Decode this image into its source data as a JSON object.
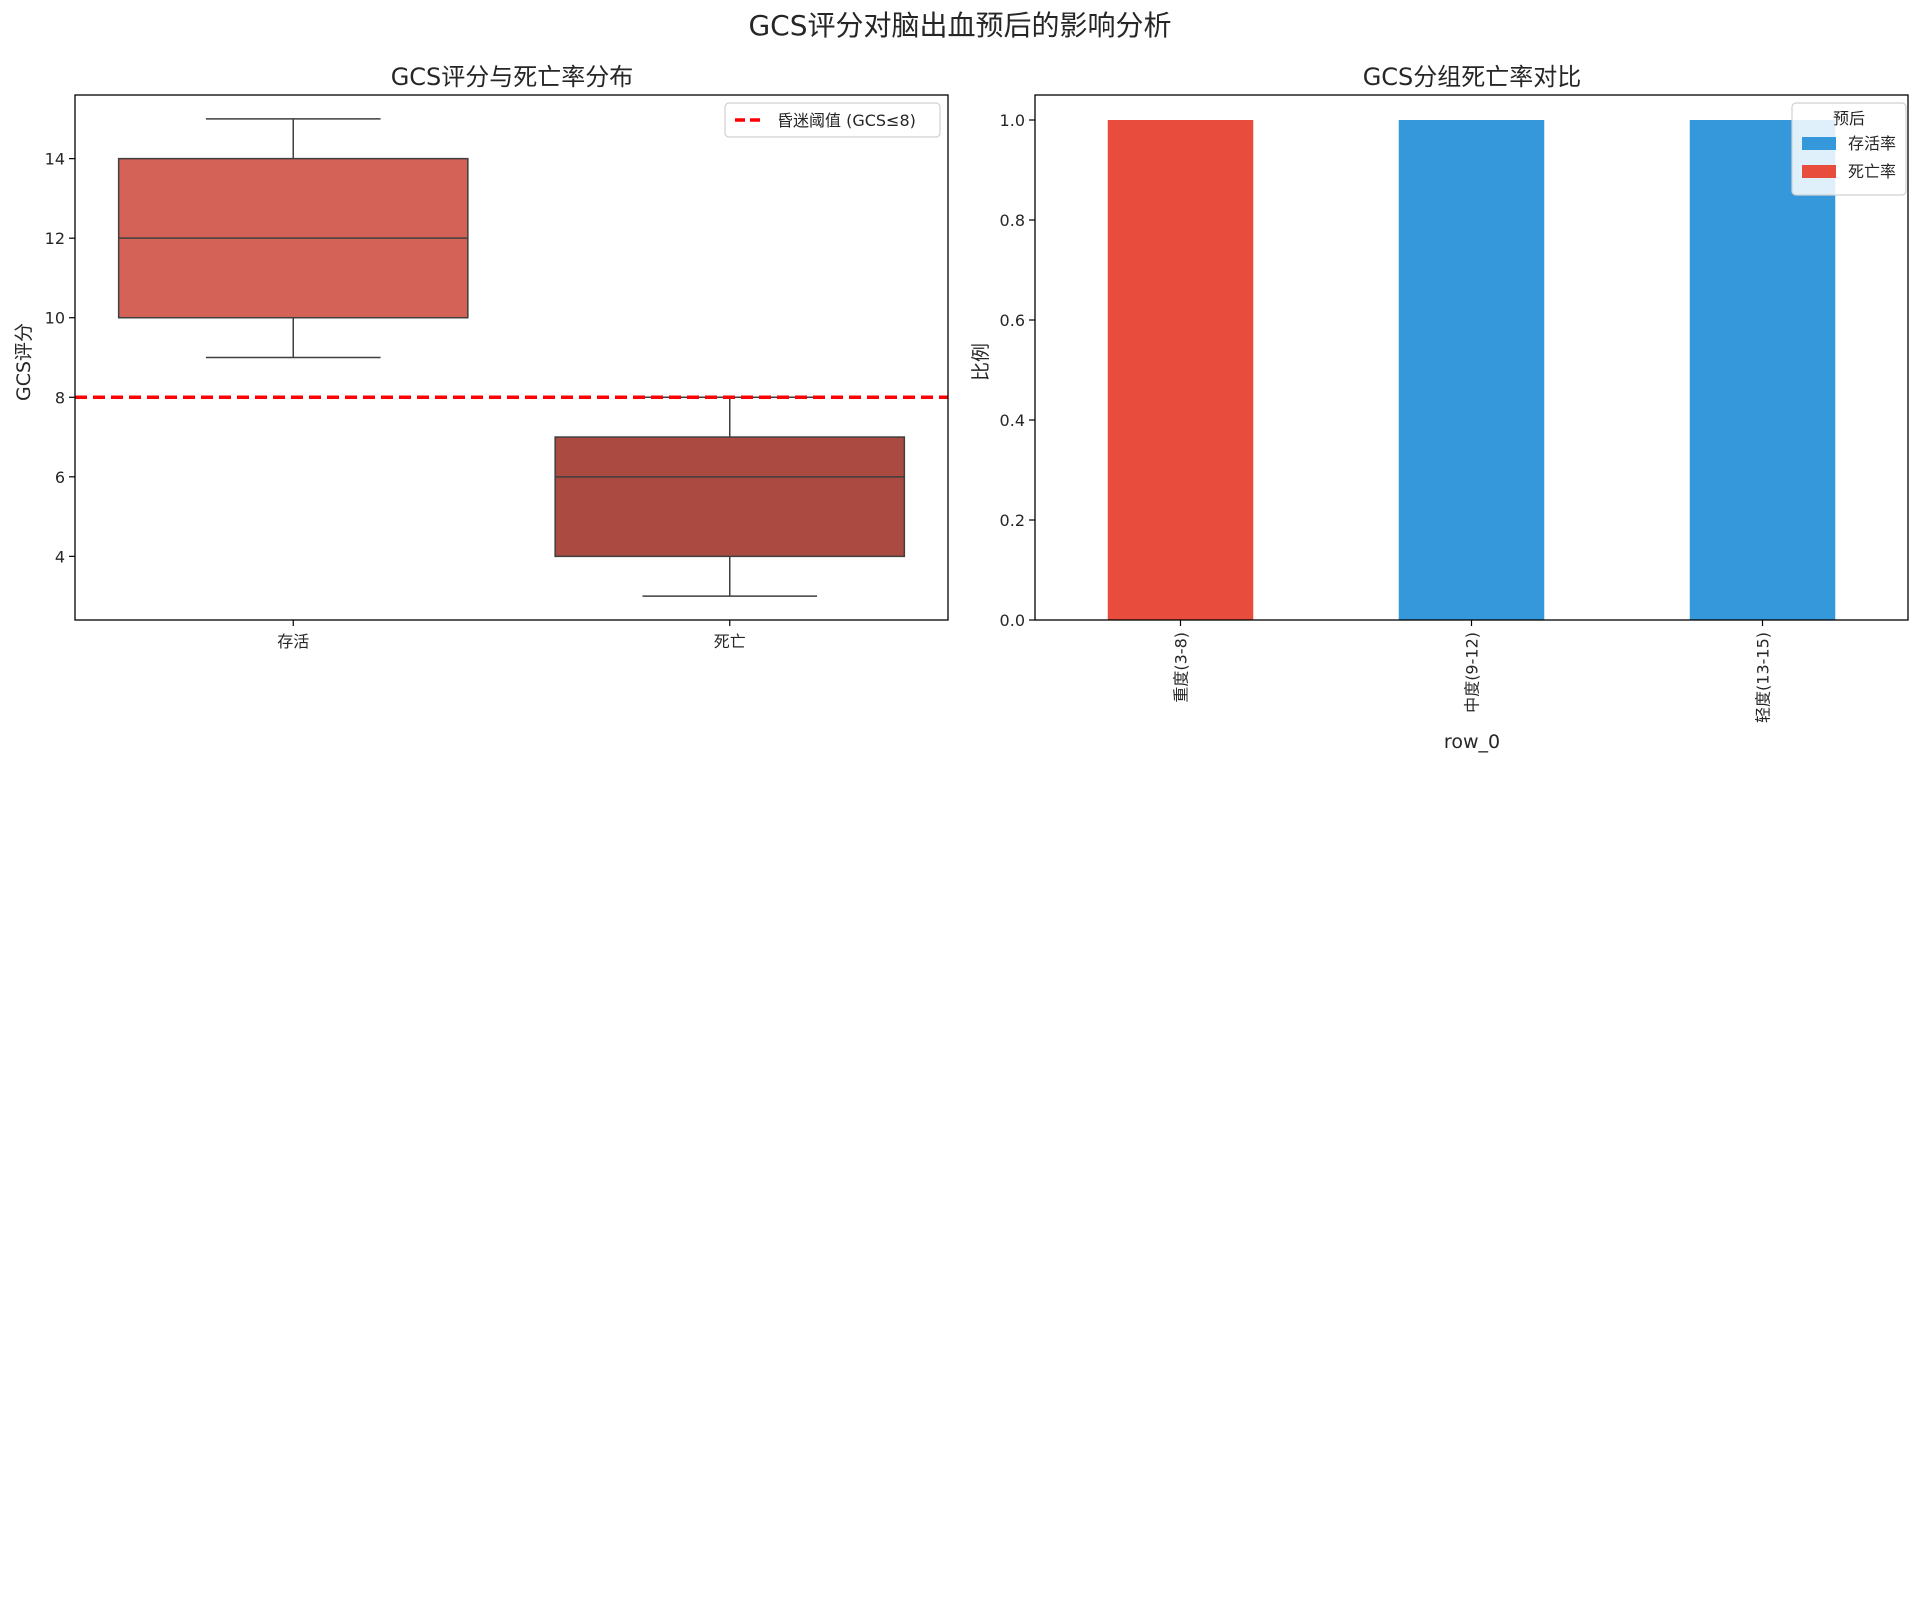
{
  "figure": {
    "suptitle": "GCS评分对脑出血预后的影响分析"
  },
  "chart_data": [
    {
      "type": "box",
      "title": "GCS评分与死亡率分布",
      "xlabel": "",
      "ylabel": "GCS评分",
      "categories": [
        "存活",
        "死亡"
      ],
      "boxes": [
        {
          "category": "存活",
          "whisker_low": 9,
          "q1": 10,
          "median": 12,
          "q3": 14,
          "whisker_high": 15,
          "color": "#d46256"
        },
        {
          "category": "死亡",
          "whisker_low": 3,
          "q1": 4,
          "median": 6,
          "q3": 7,
          "whisker_high": 8,
          "color": "#ab4a40"
        }
      ],
      "ylim": [
        2.4,
        15.6
      ],
      "yticks": [
        4,
        6,
        8,
        10,
        12,
        14
      ],
      "threshold": {
        "value": 8,
        "label": "昏迷阈值 (GCS≤8)",
        "color": "#ff0000",
        "style": "dashed"
      },
      "legend_position": "top-right",
      "grid": false
    },
    {
      "type": "bar",
      "stacked": true,
      "title": "GCS分组死亡率对比",
      "xlabel": "row_0",
      "ylabel": "比例",
      "categories": [
        "重度(3-8)",
        "中度(9-12)",
        "轻度(13-15)"
      ],
      "series": [
        {
          "name": "存活率",
          "values": [
            0,
            1,
            1
          ],
          "color": "#3498db"
        },
        {
          "name": "死亡率",
          "values": [
            1,
            0,
            0
          ],
          "color": "#e74c3c"
        }
      ],
      "ylim": [
        0,
        1.05
      ],
      "yticks": [
        "0.0",
        "0.2",
        "0.4",
        "0.6",
        "0.8",
        "1.0"
      ],
      "legend_title": "预后",
      "legend_position": "top-right",
      "grid": false
    }
  ]
}
